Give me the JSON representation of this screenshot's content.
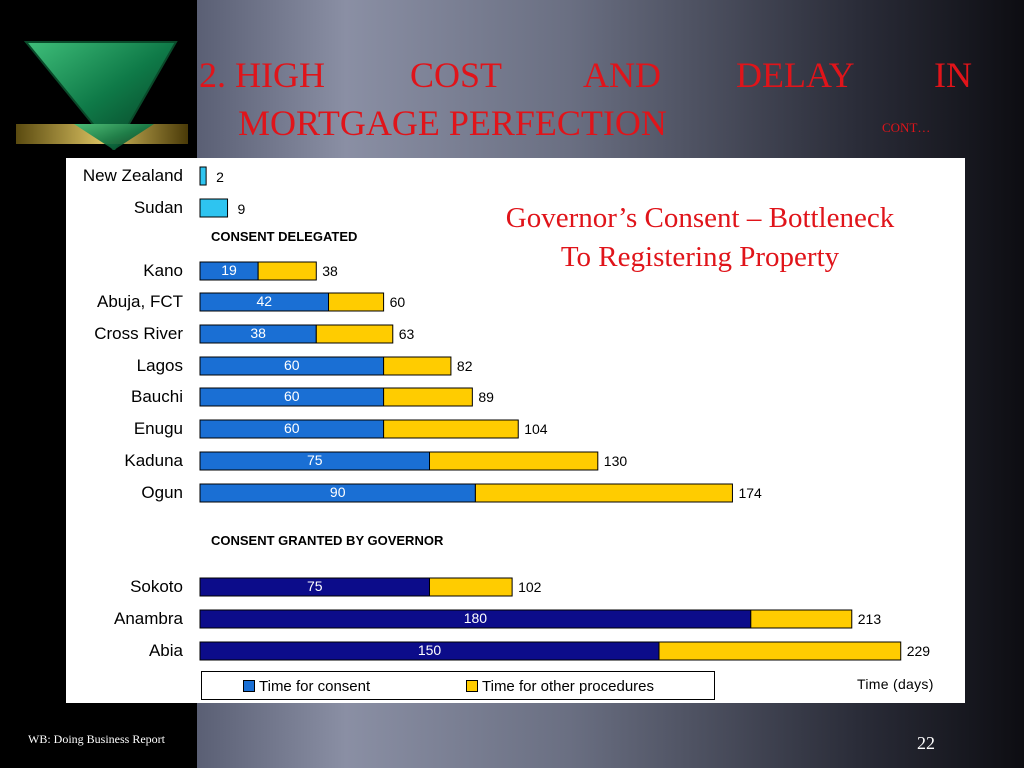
{
  "slide": {
    "title_line1": [
      "2. HIGH",
      "COST",
      "AND",
      "DELAY",
      "IN"
    ],
    "title_line2": "MORTGAGE PERFECTION",
    "cont": "CONT…",
    "callout_line1": "Governor’s Consent – Bottleneck",
    "callout_line2": "To Registering Property",
    "source": "WB: Doing Business Report",
    "page_number": "22"
  },
  "colors": {
    "consent_delegated": "#1a6fd4",
    "consent_governor": "#0c0c8a",
    "other": "#ffcc00",
    "single": "#2ec4f0",
    "title": "#e0141a"
  },
  "chart_data": {
    "type": "bar",
    "orientation": "horizontal",
    "stacked": true,
    "xlabel": "Time (days)",
    "legend": [
      "Time for consent",
      "Time for other procedures"
    ],
    "legend_position": "bottom",
    "groups": [
      "CONSENT DELEGATED",
      "CONSENT GRANTED BY GOVERNOR"
    ],
    "rows": [
      {
        "category": "New Zealand",
        "total": 2,
        "group": null
      },
      {
        "category": "Sudan",
        "total": 9,
        "group": null
      },
      {
        "category": "Kano",
        "consent": 19,
        "total": 38,
        "group": "CONSENT DELEGATED"
      },
      {
        "category": "Abuja, FCT",
        "consent": 42,
        "total": 60,
        "group": "CONSENT DELEGATED"
      },
      {
        "category": "Cross River",
        "consent": 38,
        "total": 63,
        "group": "CONSENT DELEGATED"
      },
      {
        "category": "Lagos",
        "consent": 60,
        "total": 82,
        "group": "CONSENT DELEGATED"
      },
      {
        "category": "Bauchi",
        "consent": 60,
        "total": 89,
        "group": "CONSENT DELEGATED"
      },
      {
        "category": "Enugu",
        "consent": 60,
        "total": 104,
        "group": "CONSENT DELEGATED"
      },
      {
        "category": "Kaduna",
        "consent": 75,
        "total": 130,
        "group": "CONSENT DELEGATED"
      },
      {
        "category": "Ogun",
        "consent": 90,
        "total": 174,
        "group": "CONSENT DELEGATED"
      },
      {
        "category": "Sokoto",
        "consent": 75,
        "total": 102,
        "group": "CONSENT GRANTED BY GOVERNOR"
      },
      {
        "category": "Anambra",
        "consent": 180,
        "total": 213,
        "group": "CONSENT GRANTED BY GOVERNOR"
      },
      {
        "category": "Abia",
        "consent": 150,
        "total": 229,
        "group": "CONSENT GRANTED BY GOVERNOR"
      }
    ]
  }
}
